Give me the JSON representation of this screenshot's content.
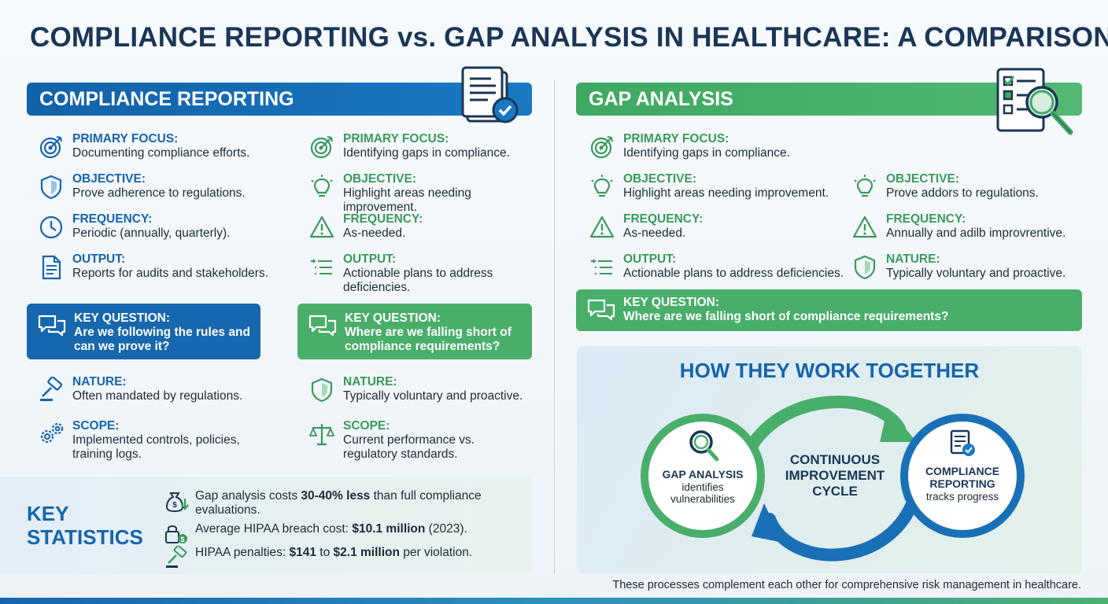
{
  "title": "COMPLIANCE REPORTING vs. GAP ANALYSIS IN HEALTHCARE: A COMPARISON",
  "left": {
    "header": "COMPLIANCE REPORTING",
    "col1": [
      {
        "icon": "target-icon",
        "label": "PRIMARY FOCUS:",
        "value": "Documenting compliance efforts."
      },
      {
        "icon": "shield-icon",
        "label": "OBJECTIVE:",
        "value": "Prove adherence to regulations."
      },
      {
        "icon": "clock-icon",
        "label": "FREQUENCY:",
        "value": "Periodic (annually, quarterly)."
      },
      {
        "icon": "document-icon",
        "label": "OUTPUT:",
        "value": "Reports for audits and stakeholders."
      }
    ],
    "col2": [
      {
        "icon": "target-icon",
        "label": "PRIMARY FOCUS:",
        "value": "Identifying gaps in compliance."
      },
      {
        "icon": "lightbulb-icon",
        "label": "OBJECTIVE:",
        "value": "Highlight areas needing improvement."
      },
      {
        "icon": "warning-icon",
        "label": "FREQUENCY:",
        "value": "As-needed."
      },
      {
        "icon": "checklist-icon",
        "label": "OUTPUT:",
        "value": "Actionable plans to address deficiencies."
      }
    ],
    "key_question_1": {
      "label": "KEY QUESTION:",
      "value": "Are we following the rules and can we prove it?"
    },
    "key_question_2": {
      "label": "KEY QUESTION:",
      "value": "Where are we falling short of compliance requirements?"
    },
    "col1_bottom": [
      {
        "icon": "gavel-icon",
        "label": "NATURE:",
        "value": "Often mandated by regulations."
      },
      {
        "icon": "gears-icon",
        "label": "SCOPE:",
        "value": "Implemented controls, policies, training logs."
      }
    ],
    "col2_bottom": [
      {
        "icon": "shield-icon",
        "label": "NATURE:",
        "value": "Typically voluntary and proactive."
      },
      {
        "icon": "scales-icon",
        "label": "SCOPE:",
        "value": "Current performance vs. regulatory standards."
      }
    ]
  },
  "stats": {
    "title_line1": "KEY",
    "title_line2": "STATISTICS",
    "rows": [
      {
        "icon": "money-bag-icon",
        "pre": "Gap analysis costs ",
        "bold": "30-40% less",
        "post": " than full compliance evaluations."
      },
      {
        "icon": "lock-money-icon",
        "pre": "Average HIPAA breach cost: ",
        "bold": "$10.1 million",
        "post": " (2023)."
      },
      {
        "icon": "gavel-icon",
        "pre": "HIPAA penalties: ",
        "bold": "$141",
        "mid": " to ",
        "bold2": "$2.1 million",
        "post": " per violation."
      }
    ]
  },
  "right": {
    "header": "GAP ANALYSIS",
    "col1": [
      {
        "icon": "target-icon",
        "label": "PRIMARY FOCUS:",
        "value": "Identifying gaps in compliance."
      },
      {
        "icon": "lightbulb-icon",
        "label": "OBJECTIVE:",
        "value": "Highlight areas needing improvement."
      },
      {
        "icon": "warning-icon",
        "label": "FREQUENCY:",
        "value": "As-needed."
      },
      {
        "icon": "checklist-icon",
        "label": "OUTPUT:",
        "value": "Actionable plans to address deficiencies."
      }
    ],
    "col2": [
      {
        "icon": "lightbulb-icon",
        "label": "OBJECTIVE:",
        "value": "Prove addors to regulations."
      },
      {
        "icon": "warning-icon",
        "label": "FREQUENCY:",
        "value": "Annually and adilb improvrentive."
      },
      {
        "icon": "shield-icon",
        "label": "NATURE:",
        "value": "Typically voluntary and proactive."
      }
    ],
    "key_question": {
      "label": "KEY QUESTION:",
      "value": "Where are we falling short of compliance requirements?"
    }
  },
  "together": {
    "title": "HOW THEY WORK TOGETHER",
    "left_circle": {
      "title": "GAP ANALYSIS",
      "sub1": "identifies",
      "sub2": "vulnerabilities"
    },
    "center": {
      "line1": "CONTINUOUS",
      "line2": "IMPROVEMENT",
      "line3": "CYCLE"
    },
    "right_circle": {
      "title1": "COMPLIANCE",
      "title2": "REPORTING",
      "sub": "tracks progress"
    }
  },
  "footer": "These processes complement each other for comprehensive risk management in healthcare.",
  "colors": {
    "blue": "#1565ad",
    "green": "#49ae6a",
    "navy": "#1b3656"
  }
}
